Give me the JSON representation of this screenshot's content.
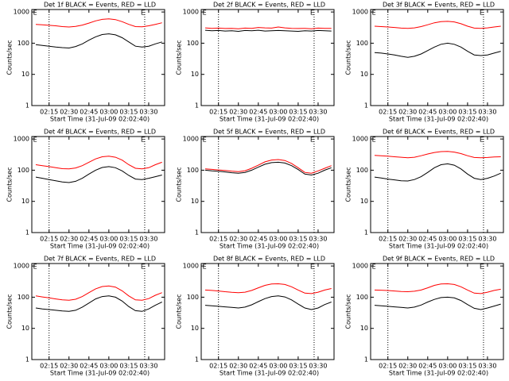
{
  "chart_data": [
    {
      "type": "line",
      "title": "Det 1f BLACK = Events, RED = LLD",
      "x_label": "Start Time (31-Jul-09 02:02:40)",
      "y_label": "Counts/sec",
      "log_y": true,
      "x": [
        "02:05",
        "02:10",
        "02:15",
        "02:20",
        "02:25",
        "02:30",
        "02:35",
        "02:40",
        "02:45",
        "02:50",
        "02:55",
        "03:00",
        "03:05",
        "03:10",
        "03:15",
        "03:20",
        "03:25",
        "03:30",
        "03:35",
        "03:40"
      ],
      "series": [
        {
          "color": "#000000",
          "values": [
            90,
            85,
            80,
            75,
            72,
            70,
            78,
            95,
            125,
            160,
            190,
            200,
            185,
            150,
            110,
            80,
            75,
            80,
            95,
            110
          ]
        },
        {
          "color": "#ff0000",
          "values": [
            400,
            390,
            375,
            360,
            340,
            330,
            345,
            380,
            440,
            520,
            580,
            600,
            570,
            490,
            400,
            340,
            335,
            360,
            400,
            450
          ]
        }
      ],
      "xlim": [
        "02:02",
        "03:42"
      ],
      "xticks": [
        "02:15",
        "02:30",
        "02:45",
        "03:00",
        "03:15",
        "03:30"
      ],
      "ylim": [
        1,
        1200
      ],
      "yticks": [
        1,
        10,
        100,
        1000
      ],
      "vlines": [
        "02:15",
        "03:27"
      ],
      "annotations": [
        {
          "text": "E",
          "x": "02:03"
        },
        {
          "text": "E",
          "x": "03:24"
        }
      ]
    },
    {
      "type": "line",
      "title": "Det 2f BLACK = Events, RED = LLD",
      "x_label": "Start Time (31-Jul-09 02:02:40)",
      "y_label": "Counts/sec",
      "log_y": true,
      "x": [
        "02:05",
        "02:10",
        "02:15",
        "02:20",
        "02:25",
        "02:30",
        "02:35",
        "02:40",
        "02:45",
        "02:50",
        "02:55",
        "03:00",
        "03:05",
        "03:10",
        "03:15",
        "03:20",
        "03:25",
        "03:30",
        "03:35",
        "03:40"
      ],
      "series": [
        {
          "color": "#000000",
          "values": [
            260,
            250,
            255,
            245,
            250,
            240,
            255,
            250,
            260,
            245,
            250,
            255,
            250,
            245,
            240,
            250,
            245,
            255,
            250,
            245
          ]
        },
        {
          "color": "#ff0000",
          "values": [
            310,
            300,
            305,
            295,
            300,
            290,
            305,
            300,
            320,
            310,
            305,
            330,
            310,
            300,
            295,
            300,
            290,
            305,
            300,
            300
          ]
        }
      ],
      "xlim": [
        "02:02",
        "03:42"
      ],
      "xticks": [
        "02:15",
        "02:30",
        "02:45",
        "03:00",
        "03:15",
        "03:30"
      ],
      "ylim": [
        1,
        1200
      ],
      "yticks": [
        1,
        10,
        100,
        1000
      ],
      "vlines": [
        "02:15",
        "03:27"
      ],
      "annotations": [
        {
          "text": "E",
          "x": "02:03"
        },
        {
          "text": "E",
          "x": "03:24"
        }
      ]
    },
    {
      "type": "line",
      "title": "Det 3f BLACK = Events, RED = LLD",
      "x_label": "Start Time (31-Jul-09 02:02:40)",
      "y_label": "Counts/sec",
      "log_y": true,
      "x": [
        "02:05",
        "02:10",
        "02:15",
        "02:20",
        "02:25",
        "02:30",
        "02:35",
        "02:40",
        "02:45",
        "02:50",
        "02:55",
        "03:00",
        "03:05",
        "03:10",
        "03:15",
        "03:20",
        "03:25",
        "03:30",
        "03:35",
        "03:40"
      ],
      "series": [
        {
          "color": "#000000",
          "values": [
            50,
            48,
            45,
            42,
            38,
            35,
            38,
            45,
            58,
            75,
            92,
            100,
            92,
            75,
            55,
            42,
            40,
            42,
            48,
            55
          ]
        },
        {
          "color": "#ff0000",
          "values": [
            350,
            340,
            330,
            320,
            305,
            300,
            310,
            340,
            390,
            450,
            490,
            500,
            480,
            420,
            350,
            305,
            300,
            310,
            330,
            350
          ]
        }
      ],
      "xlim": [
        "02:02",
        "03:42"
      ],
      "xticks": [
        "02:15",
        "02:30",
        "02:45",
        "03:00",
        "03:15",
        "03:30"
      ],
      "ylim": [
        1,
        1200
      ],
      "yticks": [
        1,
        10,
        100,
        1000
      ],
      "vlines": [
        "02:15",
        "03:27"
      ],
      "annotations": [
        {
          "text": "E",
          "x": "02:03"
        },
        {
          "text": "E",
          "x": "03:24"
        }
      ]
    },
    {
      "type": "line",
      "title": "Det 4f BLACK = Events, RED = LLD",
      "x_label": "Start Time (31-Jul-09 02:02:40)",
      "y_label": "Counts/sec",
      "log_y": true,
      "x": [
        "02:05",
        "02:10",
        "02:15",
        "02:20",
        "02:25",
        "02:30",
        "02:35",
        "02:40",
        "02:45",
        "02:50",
        "02:55",
        "03:00",
        "03:05",
        "03:10",
        "03:15",
        "03:20",
        "03:25",
        "03:30",
        "03:35",
        "03:40"
      ],
      "series": [
        {
          "color": "#000000",
          "values": [
            60,
            55,
            50,
            46,
            42,
            40,
            44,
            55,
            75,
            100,
            122,
            130,
            120,
            95,
            68,
            52,
            50,
            55,
            62,
            70
          ]
        },
        {
          "color": "#ff0000",
          "values": [
            150,
            140,
            130,
            120,
            112,
            110,
            118,
            140,
            180,
            230,
            270,
            280,
            260,
            210,
            150,
            115,
            110,
            120,
            150,
            180
          ]
        }
      ],
      "xlim": [
        "02:02",
        "03:42"
      ],
      "xticks": [
        "02:15",
        "02:30",
        "02:45",
        "03:00",
        "03:15",
        "03:30"
      ],
      "ylim": [
        1,
        1200
      ],
      "yticks": [
        1,
        10,
        100,
        1000
      ],
      "vlines": [
        "02:15",
        "03:27"
      ],
      "annotations": [
        {
          "text": "E",
          "x": "02:03"
        },
        {
          "text": "E",
          "x": "03:24"
        }
      ]
    },
    {
      "type": "line",
      "title": "Det 5f BLACK = Events, RED = LLD",
      "x_label": "Start Time (31-Jul-09 02:02:40)",
      "y_label": "Counts/sec",
      "log_y": true,
      "x": [
        "02:05",
        "02:10",
        "02:15",
        "02:20",
        "02:25",
        "02:30",
        "02:35",
        "02:40",
        "02:45",
        "02:50",
        "02:55",
        "03:00",
        "03:05",
        "03:10",
        "03:15",
        "03:20",
        "03:25",
        "03:30",
        "03:35",
        "03:40"
      ],
      "series": [
        {
          "color": "#000000",
          "values": [
            100,
            95,
            92,
            88,
            83,
            80,
            85,
            100,
            125,
            155,
            175,
            180,
            170,
            140,
            105,
            75,
            70,
            80,
            100,
            120
          ]
        },
        {
          "color": "#ff0000",
          "values": [
            110,
            106,
            102,
            98,
            93,
            90,
            96,
            115,
            145,
            185,
            212,
            220,
            205,
            165,
            120,
            85,
            80,
            95,
            115,
            140
          ]
        }
      ],
      "xlim": [
        "02:02",
        "03:42"
      ],
      "xticks": [
        "02:15",
        "02:30",
        "02:45",
        "03:00",
        "03:15",
        "03:30"
      ],
      "ylim": [
        1,
        1200
      ],
      "yticks": [
        1,
        10,
        100,
        1000
      ],
      "vlines": [
        "02:15",
        "03:27"
      ],
      "annotations": [
        {
          "text": "E",
          "x": "02:03"
        },
        {
          "text": "E",
          "x": "03:24"
        }
      ]
    },
    {
      "type": "line",
      "title": "Det 6f BLACK = Events, RED = LLD",
      "x_label": "Start Time (31-Jul-09 02:02:40)",
      "y_label": "Counts/sec",
      "log_y": true,
      "x": [
        "02:05",
        "02:10",
        "02:15",
        "02:20",
        "02:25",
        "02:30",
        "02:35",
        "02:40",
        "02:45",
        "02:50",
        "02:55",
        "03:00",
        "03:05",
        "03:10",
        "03:15",
        "03:20",
        "03:25",
        "03:30",
        "03:35",
        "03:40"
      ],
      "series": [
        {
          "color": "#000000",
          "values": [
            60,
            56,
            52,
            49,
            46,
            45,
            50,
            62,
            85,
            120,
            150,
            160,
            145,
            110,
            75,
            55,
            50,
            55,
            65,
            80
          ]
        },
        {
          "color": "#ff0000",
          "values": [
            300,
            290,
            280,
            270,
            260,
            250,
            260,
            290,
            330,
            370,
            395,
            400,
            380,
            340,
            290,
            255,
            250,
            255,
            265,
            270
          ]
        }
      ],
      "xlim": [
        "02:02",
        "03:42"
      ],
      "xticks": [
        "02:15",
        "02:30",
        "02:45",
        "03:00",
        "03:15",
        "03:30"
      ],
      "ylim": [
        1,
        1200
      ],
      "yticks": [
        1,
        10,
        100,
        1000
      ],
      "vlines": [
        "02:15",
        "03:27"
      ],
      "annotations": [
        {
          "text": "E",
          "x": "02:03"
        },
        {
          "text": "E",
          "x": "03:24"
        }
      ]
    },
    {
      "type": "line",
      "title": "Det 7f BLACK = Events, RED = LLD",
      "x_label": "Start Time (31-Jul-09 02:02:40)",
      "y_label": "Counts/sec",
      "log_y": true,
      "x": [
        "02:05",
        "02:10",
        "02:15",
        "02:20",
        "02:25",
        "02:30",
        "02:35",
        "02:40",
        "02:45",
        "02:50",
        "02:55",
        "03:00",
        "03:05",
        "03:10",
        "03:15",
        "03:20",
        "03:25",
        "03:30",
        "03:35",
        "03:40"
      ],
      "series": [
        {
          "color": "#000000",
          "values": [
            45,
            42,
            40,
            38,
            36,
            35,
            38,
            48,
            65,
            88,
            105,
            110,
            100,
            75,
            50,
            37,
            35,
            42,
            55,
            70
          ]
        },
        {
          "color": "#ff0000",
          "values": [
            110,
            102,
            95,
            88,
            82,
            80,
            86,
            105,
            140,
            185,
            220,
            230,
            210,
            160,
            110,
            82,
            80,
            90,
            115,
            140
          ]
        }
      ],
      "xlim": [
        "02:02",
        "03:42"
      ],
      "xticks": [
        "02:15",
        "02:30",
        "02:45",
        "03:00",
        "03:15",
        "03:30"
      ],
      "ylim": [
        1,
        1200
      ],
      "yticks": [
        1,
        10,
        100,
        1000
      ],
      "vlines": [
        "02:15",
        "03:27"
      ],
      "annotations": [
        {
          "text": "E",
          "x": "02:03"
        },
        {
          "text": "E",
          "x": "03:24"
        }
      ]
    },
    {
      "type": "line",
      "title": "Det 8f BLACK = Events, RED = LLD",
      "x_label": "Start Time (31-Jul-09 02:02:40)",
      "y_label": "Counts/sec",
      "log_y": true,
      "x": [
        "02:05",
        "02:10",
        "02:15",
        "02:20",
        "02:25",
        "02:30",
        "02:35",
        "02:40",
        "02:45",
        "02:50",
        "02:55",
        "03:00",
        "03:05",
        "03:10",
        "03:15",
        "03:20",
        "03:25",
        "03:30",
        "03:35",
        "03:40"
      ],
      "series": [
        {
          "color": "#000000",
          "values": [
            55,
            53,
            51,
            49,
            47,
            45,
            48,
            57,
            72,
            90,
            105,
            110,
            102,
            82,
            60,
            45,
            40,
            45,
            58,
            70
          ]
        },
        {
          "color": "#ff0000",
          "values": [
            170,
            165,
            158,
            150,
            144,
            140,
            145,
            165,
            200,
            240,
            265,
            270,
            255,
            215,
            170,
            135,
            130,
            145,
            170,
            190
          ]
        }
      ],
      "xlim": [
        "02:02",
        "03:42"
      ],
      "xticks": [
        "02:15",
        "02:30",
        "02:45",
        "03:00",
        "03:15",
        "03:30"
      ],
      "ylim": [
        1,
        1200
      ],
      "yticks": [
        1,
        10,
        100,
        1000
      ],
      "vlines": [
        "02:15",
        "03:27"
      ],
      "annotations": [
        {
          "text": "E",
          "x": "02:03"
        },
        {
          "text": "E",
          "x": "03:24"
        }
      ]
    },
    {
      "type": "line",
      "title": "Det 9f BLACK = Events, RED = LLD",
      "x_label": "Start Time (31-Jul-09 02:02:40)",
      "y_label": "Counts/sec",
      "log_y": true,
      "x": [
        "02:05",
        "02:10",
        "02:15",
        "02:20",
        "02:25",
        "02:30",
        "02:35",
        "02:40",
        "02:45",
        "02:50",
        "02:55",
        "03:00",
        "03:05",
        "03:10",
        "03:15",
        "03:20",
        "03:25",
        "03:30",
        "03:35",
        "03:40"
      ],
      "series": [
        {
          "color": "#000000",
          "values": [
            55,
            53,
            51,
            49,
            47,
            45,
            48,
            56,
            70,
            85,
            97,
            100,
            95,
            78,
            58,
            44,
            40,
            45,
            52,
            60
          ]
        },
        {
          "color": "#ff0000",
          "values": [
            170,
            168,
            164,
            158,
            153,
            150,
            155,
            170,
            200,
            240,
            265,
            270,
            255,
            215,
            170,
            135,
            130,
            145,
            165,
            180
          ]
        }
      ],
      "xlim": [
        "02:02",
        "03:42"
      ],
      "xticks": [
        "02:15",
        "02:30",
        "02:45",
        "03:00",
        "03:15",
        "03:30"
      ],
      "ylim": [
        1,
        1200
      ],
      "yticks": [
        1,
        10,
        100,
        1000
      ],
      "vlines": [
        "02:15",
        "03:27"
      ],
      "annotations": [
        {
          "text": "E",
          "x": "02:03"
        },
        {
          "text": "E",
          "x": "03:24"
        }
      ]
    }
  ]
}
